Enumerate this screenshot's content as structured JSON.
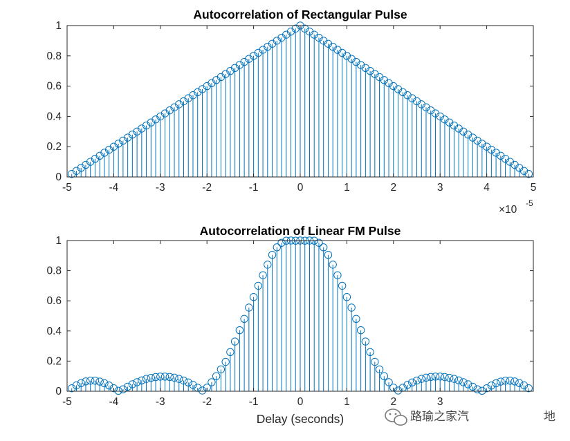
{
  "watermark": {
    "text": "路瑜之家汽",
    "tail": "地"
  },
  "chart_data": [
    {
      "type": "stem",
      "title": "Autocorrelation of Rectangular Pulse",
      "xlabel": "",
      "ylabel": "",
      "xlim": [
        -5e-05,
        5e-05
      ],
      "ylim": [
        0,
        1
      ],
      "x_exponent_label": "×10",
      "x_exponent_power": "-5",
      "xticks": [
        -5e-05,
        -4e-05,
        -3e-05,
        -2e-05,
        -1e-05,
        0,
        1e-05,
        2e-05,
        3e-05,
        4e-05,
        5e-05
      ],
      "xtick_labels": [
        "-5",
        "-4",
        "-3",
        "-2",
        "-1",
        "0",
        "1",
        "2",
        "3",
        "4",
        "5"
      ],
      "yticks": [
        0,
        0.2,
        0.4,
        0.6,
        0.8,
        1
      ],
      "ytick_labels": [
        "0",
        "0.2",
        "0.4",
        "0.6",
        "0.8",
        "1"
      ],
      "color": "#0072BD",
      "x": [
        -4.9e-05,
        -4.8e-05,
        -4.7e-05,
        -4.6e-05,
        -4.5e-05,
        -4.4e-05,
        -4.3e-05,
        -4.2e-05,
        -4.1e-05,
        -4e-05,
        -3.9e-05,
        -3.8e-05,
        -3.7e-05,
        -3.6e-05,
        -3.5e-05,
        -3.4e-05,
        -3.3e-05,
        -3.2e-05,
        -3.1e-05,
        -3e-05,
        -2.9e-05,
        -2.8e-05,
        -2.7e-05,
        -2.6e-05,
        -2.5e-05,
        -2.4e-05,
        -2.3e-05,
        -2.2e-05,
        -2.1e-05,
        -2e-05,
        -1.9e-05,
        -1.8e-05,
        -1.7e-05,
        -1.6e-05,
        -1.5e-05,
        -1.4e-05,
        -1.3e-05,
        -1.2e-05,
        -1.1e-05,
        -1e-05,
        -9e-06,
        -8e-06,
        -7e-06,
        -6e-06,
        -5e-06,
        -4e-06,
        -3e-06,
        -2e-06,
        -1e-06,
        0,
        1e-06,
        2e-06,
        3e-06,
        4e-06,
        5e-06,
        6e-06,
        7e-06,
        8e-06,
        9e-06,
        1e-05,
        1.1e-05,
        1.2e-05,
        1.3e-05,
        1.4e-05,
        1.5e-05,
        1.6e-05,
        1.7e-05,
        1.8e-05,
        1.9e-05,
        2e-05,
        2.1e-05,
        2.2e-05,
        2.3e-05,
        2.4e-05,
        2.5e-05,
        2.6e-05,
        2.7e-05,
        2.8e-05,
        2.9e-05,
        3e-05,
        3.1e-05,
        3.2e-05,
        3.3e-05,
        3.4e-05,
        3.5e-05,
        3.6e-05,
        3.7e-05,
        3.8e-05,
        3.9e-05,
        4e-05,
        4.1e-05,
        4.2e-05,
        4.3e-05,
        4.4e-05,
        4.5e-05,
        4.6e-05,
        4.7e-05,
        4.8e-05,
        4.9e-05
      ],
      "y": [
        0.02,
        0.04,
        0.06,
        0.08,
        0.1,
        0.12,
        0.14,
        0.16,
        0.18,
        0.2,
        0.22,
        0.24,
        0.26,
        0.28,
        0.3,
        0.32,
        0.34,
        0.36,
        0.38,
        0.4,
        0.42,
        0.44,
        0.46,
        0.48,
        0.5,
        0.52,
        0.54,
        0.56,
        0.58,
        0.6,
        0.62,
        0.64,
        0.66,
        0.68,
        0.7,
        0.72,
        0.74,
        0.76,
        0.78,
        0.8,
        0.82,
        0.84,
        0.86,
        0.88,
        0.9,
        0.92,
        0.94,
        0.96,
        0.98,
        1.0,
        0.98,
        0.96,
        0.94,
        0.92,
        0.9,
        0.88,
        0.86,
        0.84,
        0.82,
        0.8,
        0.78,
        0.76,
        0.74,
        0.72,
        0.7,
        0.68,
        0.66,
        0.64,
        0.62,
        0.6,
        0.58,
        0.56,
        0.54,
        0.52,
        0.5,
        0.48,
        0.46,
        0.44,
        0.42,
        0.4,
        0.38,
        0.36,
        0.34,
        0.32,
        0.3,
        0.28,
        0.26,
        0.24,
        0.22,
        0.2,
        0.18,
        0.16,
        0.14,
        0.12,
        0.1,
        0.08,
        0.06,
        0.04,
        0.02
      ]
    },
    {
      "type": "stem",
      "title": "Autocorrelation of Linear FM Pulse",
      "xlabel": "Delay (seconds)",
      "ylabel": "",
      "xlim": [
        -5e-05,
        5e-05
      ],
      "ylim": [
        0,
        1
      ],
      "xticks": [
        -5e-05,
        -4e-05,
        -3e-05,
        -2e-05,
        -1e-05,
        0,
        1e-05,
        2e-05,
        3e-05
      ],
      "xtick_labels": [
        "-5",
        "-4",
        "-3",
        "-2",
        "-1",
        "0",
        "1",
        "2",
        "3"
      ],
      "yticks": [
        0,
        0.2,
        0.4,
        0.6,
        0.8,
        1
      ],
      "ytick_labels": [
        "0",
        "0.2",
        "0.4",
        "0.6",
        "0.8",
        "1"
      ],
      "color": "#0072BD",
      "x": [
        -4.9e-05,
        -4.8e-05,
        -4.7e-05,
        -4.6e-05,
        -4.5e-05,
        -4.4e-05,
        -4.3e-05,
        -4.2e-05,
        -4.1e-05,
        -4e-05,
        -3.9e-05,
        -3.8e-05,
        -3.7e-05,
        -3.6e-05,
        -3.5e-05,
        -3.4e-05,
        -3.3e-05,
        -3.2e-05,
        -3.1e-05,
        -3e-05,
        -2.9e-05,
        -2.8e-05,
        -2.7e-05,
        -2.6e-05,
        -2.5e-05,
        -2.4e-05,
        -2.3e-05,
        -2.2e-05,
        -2.1e-05,
        -2e-05,
        -1.9e-05,
        -1.8e-05,
        -1.7e-05,
        -1.6e-05,
        -1.5e-05,
        -1.4e-05,
        -1.3e-05,
        -1.2e-05,
        -1.1e-05,
        -1e-05,
        -9e-06,
        -8e-06,
        -7e-06,
        -6e-06,
        -5e-06,
        -4e-06,
        -3e-06,
        -2e-06,
        -1e-06,
        0,
        1e-06,
        2e-06,
        3e-06,
        4e-06,
        5e-06,
        6e-06,
        7e-06,
        8e-06,
        9e-06,
        1e-05,
        1.1e-05,
        1.2e-05,
        1.3e-05,
        1.4e-05,
        1.5e-05,
        1.6e-05,
        1.7e-05,
        1.8e-05,
        1.9e-05,
        2e-05,
        2.1e-05,
        2.2e-05,
        2.3e-05,
        2.4e-05,
        2.5e-05,
        2.6e-05,
        2.7e-05,
        2.8e-05,
        2.9e-05,
        3e-05,
        3.1e-05,
        3.2e-05,
        3.3e-05,
        3.4e-05,
        3.5e-05,
        3.6e-05,
        3.7e-05,
        3.8e-05,
        3.9e-05,
        4e-05,
        4.1e-05,
        4.2e-05,
        4.3e-05,
        4.4e-05,
        4.5e-05,
        4.6e-05,
        4.7e-05,
        4.8e-05,
        4.9e-05
      ],
      "y": [
        0.02,
        0.039,
        0.054,
        0.065,
        0.07,
        0.07,
        0.064,
        0.053,
        0.038,
        0.02,
        0.003,
        0.013,
        0.03,
        0.046,
        0.06,
        0.072,
        0.082,
        0.089,
        0.094,
        0.097,
        0.097,
        0.095,
        0.09,
        0.082,
        0.071,
        0.058,
        0.042,
        0.023,
        0.005,
        0.024,
        0.06,
        0.1,
        0.145,
        0.195,
        0.26,
        0.33,
        0.405,
        0.48,
        0.555,
        0.625,
        0.7,
        0.77,
        0.84,
        0.905,
        0.955,
        0.985,
        0.999,
        1.0,
        0.999,
        1.0,
        0.999,
        1.0,
        0.999,
        0.985,
        0.955,
        0.905,
        0.84,
        0.77,
        0.7,
        0.625,
        0.555,
        0.48,
        0.405,
        0.33,
        0.26,
        0.195,
        0.145,
        0.1,
        0.06,
        0.024,
        0.005,
        0.023,
        0.042,
        0.058,
        0.071,
        0.082,
        0.09,
        0.095,
        0.097,
        0.097,
        0.094,
        0.089,
        0.082,
        0.072,
        0.06,
        0.046,
        0.03,
        0.013,
        0.003,
        0.02,
        0.038,
        0.053,
        0.064,
        0.07,
        0.07,
        0.065,
        0.054,
        0.039,
        0.02
      ]
    }
  ]
}
